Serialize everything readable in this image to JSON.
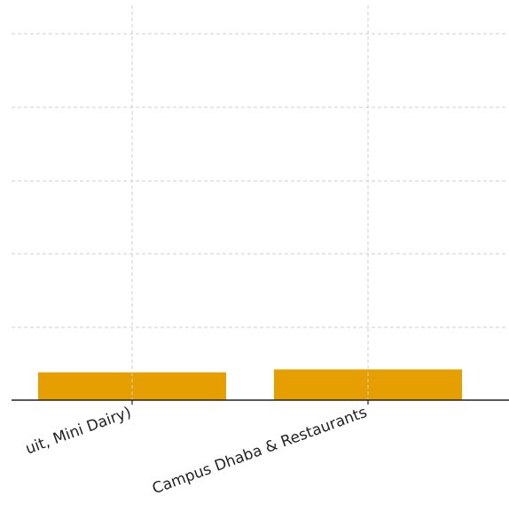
{
  "chart_data": {
    "type": "bar",
    "categories": [
      "(Fruit, Mini Dairy)",
      "Campus Dhaba & Restaurants"
    ],
    "visible_tick_labels": [
      "uit, Mini Dairy)",
      "Campus Dhaba & Restaurants"
    ],
    "values": [
      19,
      21
    ],
    "ylim": [
      0,
      270
    ],
    "grid": true,
    "bar_color": "#E69F00",
    "title": "",
    "xlabel": "",
    "ylabel": ""
  }
}
